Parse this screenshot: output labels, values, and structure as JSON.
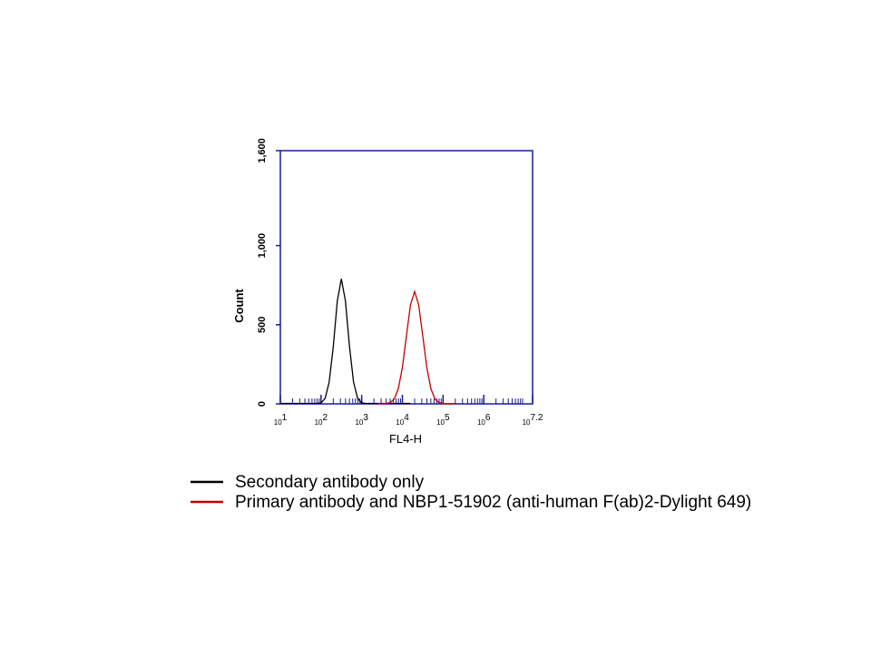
{
  "chart_data": {
    "type": "line",
    "y_label": "Count",
    "x_label": "FL4-H",
    "log_x": true,
    "xlim": [
      10,
      15848931.92
    ],
    "xticks": [
      {
        "value": 10,
        "label": "10",
        "exponent": "1"
      },
      {
        "value": 100,
        "label": "10",
        "exponent": "2"
      },
      {
        "value": 1000,
        "label": "10",
        "exponent": "3"
      },
      {
        "value": 10000,
        "label": "10",
        "exponent": "4"
      },
      {
        "value": 100000,
        "label": "10",
        "exponent": "5"
      },
      {
        "value": 1000000,
        "label": "10",
        "exponent": "6"
      },
      {
        "value": 15848931.92,
        "label": "10",
        "exponent": "7.2"
      }
    ],
    "ylim": [
      0,
      1600
    ],
    "yticks": [
      0,
      500,
      {
        "value": 1000,
        "label": "1,000"
      },
      {
        "value": 1600,
        "label": "1,600"
      }
    ],
    "axis_color": "#1a1a9c",
    "x": [
      10,
      12.6,
      15.8,
      20,
      25.1,
      31.6,
      39.8,
      50.1,
      63.1,
      79.4,
      100,
      126,
      158,
      200,
      251,
      316,
      398,
      501,
      631,
      794,
      1000,
      1260,
      1580,
      2000,
      2510,
      3160,
      3980,
      5010,
      6310,
      7940,
      10000,
      12600,
      15800,
      20000,
      25100,
      31600,
      39800,
      50100,
      63100,
      79400,
      100000,
      126000,
      158000,
      200000,
      251000,
      316000,
      398000
    ],
    "series": [
      {
        "name": "Secondary antibody only",
        "color": "#000000",
        "values": [
          3,
          3,
          3,
          3,
          3,
          3,
          3,
          3,
          3,
          3,
          6,
          35,
          136,
          362,
          650,
          790,
          650,
          362,
          136,
          35,
          6,
          3,
          3,
          3,
          3,
          3,
          3,
          3,
          3,
          3,
          3,
          3,
          3,
          null,
          null,
          null,
          null,
          null,
          null,
          null,
          null,
          null,
          null,
          null,
          null,
          null,
          null
        ]
      },
      {
        "name": "Primary antibody and NBP1-51902 (anti-human F(ab)2-Dylight 649)",
        "color": "#c00000",
        "values": [
          null,
          null,
          null,
          null,
          null,
          null,
          null,
          null,
          null,
          null,
          null,
          null,
          null,
          null,
          null,
          null,
          null,
          null,
          null,
          null,
          null,
          null,
          null,
          null,
          1,
          1,
          2,
          8,
          31,
          96,
          231,
          431,
          626,
          710,
          626,
          431,
          231,
          96,
          31,
          8,
          2,
          1,
          1,
          1,
          null,
          null,
          null
        ]
      }
    ]
  }
}
